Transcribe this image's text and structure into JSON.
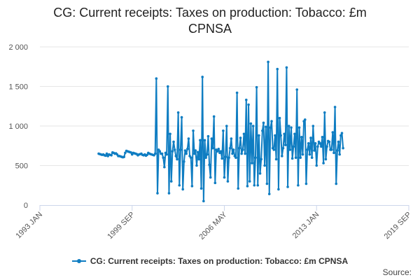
{
  "title_line1": "CG: Current receipts: Taxes on production: Tobacco: £m",
  "title_line2": "CPNSA",
  "source_label": "Source:",
  "colors": {
    "series": "#0f7dc2",
    "grid": "#e6e6e6",
    "axis": "#ccd6eb"
  },
  "chart_data": {
    "type": "line",
    "title": "CG: Current receipts: Taxes on production: Tobacco: £m CPNSA",
    "xlabel": "",
    "ylabel": "",
    "ylim": [
      0,
      2000
    ],
    "y_ticks": [
      "0",
      "500",
      "1 000",
      "1 500",
      "2 000"
    ],
    "x_ticks": [
      "1993 JAN",
      "1999 SEP",
      "2006 MAY",
      "2013 JAN",
      "2019 SEP"
    ],
    "x_range": [
      "1993-01",
      "2019-09"
    ],
    "grid": true,
    "legend": "bottom",
    "series": [
      {
        "name": "CG: Current receipts: Taxes on production: Tobacco: £m CPNSA",
        "start": "1997-04",
        "frequency": "monthly",
        "values": [
          650,
          645,
          640,
          635,
          640,
          630,
          625,
          650,
          620,
          640,
          635,
          630,
          665,
          660,
          650,
          655,
          640,
          620,
          620,
          615,
          610,
          605,
          610,
          660,
          685,
          680,
          675,
          670,
          665,
          640,
          660,
          655,
          650,
          645,
          630,
          640,
          645,
          650,
          635,
          630,
          640,
          625,
          635,
          660,
          650,
          645,
          640,
          635,
          630,
          650,
          1600,
          150,
          700,
          680,
          650,
          650,
          600,
          480,
          660,
          640,
          1500,
          150,
          900,
          300,
          680,
          800,
          700,
          620,
          580,
          1170,
          250,
          700,
          1110,
          200,
          550,
          690,
          650,
          710,
          840,
          620,
          600,
          240,
          940,
          650,
          690,
          500,
          670,
          580,
          820,
          210,
          1620,
          50,
          820,
          600,
          640,
          870,
          510,
          350,
          840,
          720,
          1120,
          280,
          700,
          680,
          710,
          660,
          680,
          590,
          940,
          350,
          610,
          1000,
          300,
          600,
          720,
          840,
          650,
          700,
          620,
          600,
          1420,
          210,
          720,
          850,
          650,
          700,
          900,
          650,
          1330,
          240,
          1270,
          300,
          1030,
          530,
          1000,
          250,
          600,
          1490,
          250,
          880,
          400,
          580,
          940,
          1040,
          500,
          990,
          270,
          1810,
          140,
          980,
          1060,
          720,
          700,
          880,
          580,
          1720,
          200,
          1100,
          880,
          620,
          720,
          900,
          760,
          1740,
          230,
          1000,
          700,
          980,
          590,
          740,
          900,
          600,
          1460,
          250,
          980,
          600,
          860,
          640,
          1060,
          1080,
          270,
          700,
          780,
          640,
          850,
          600,
          1000,
          690,
          780,
          500,
          740,
          800,
          780,
          740,
          860,
          530,
          1170,
          580,
          740,
          810,
          800,
          700,
          700,
          920,
          660,
          1240,
          270,
          690,
          800,
          640,
          880,
          910,
          720
        ]
      }
    ]
  }
}
